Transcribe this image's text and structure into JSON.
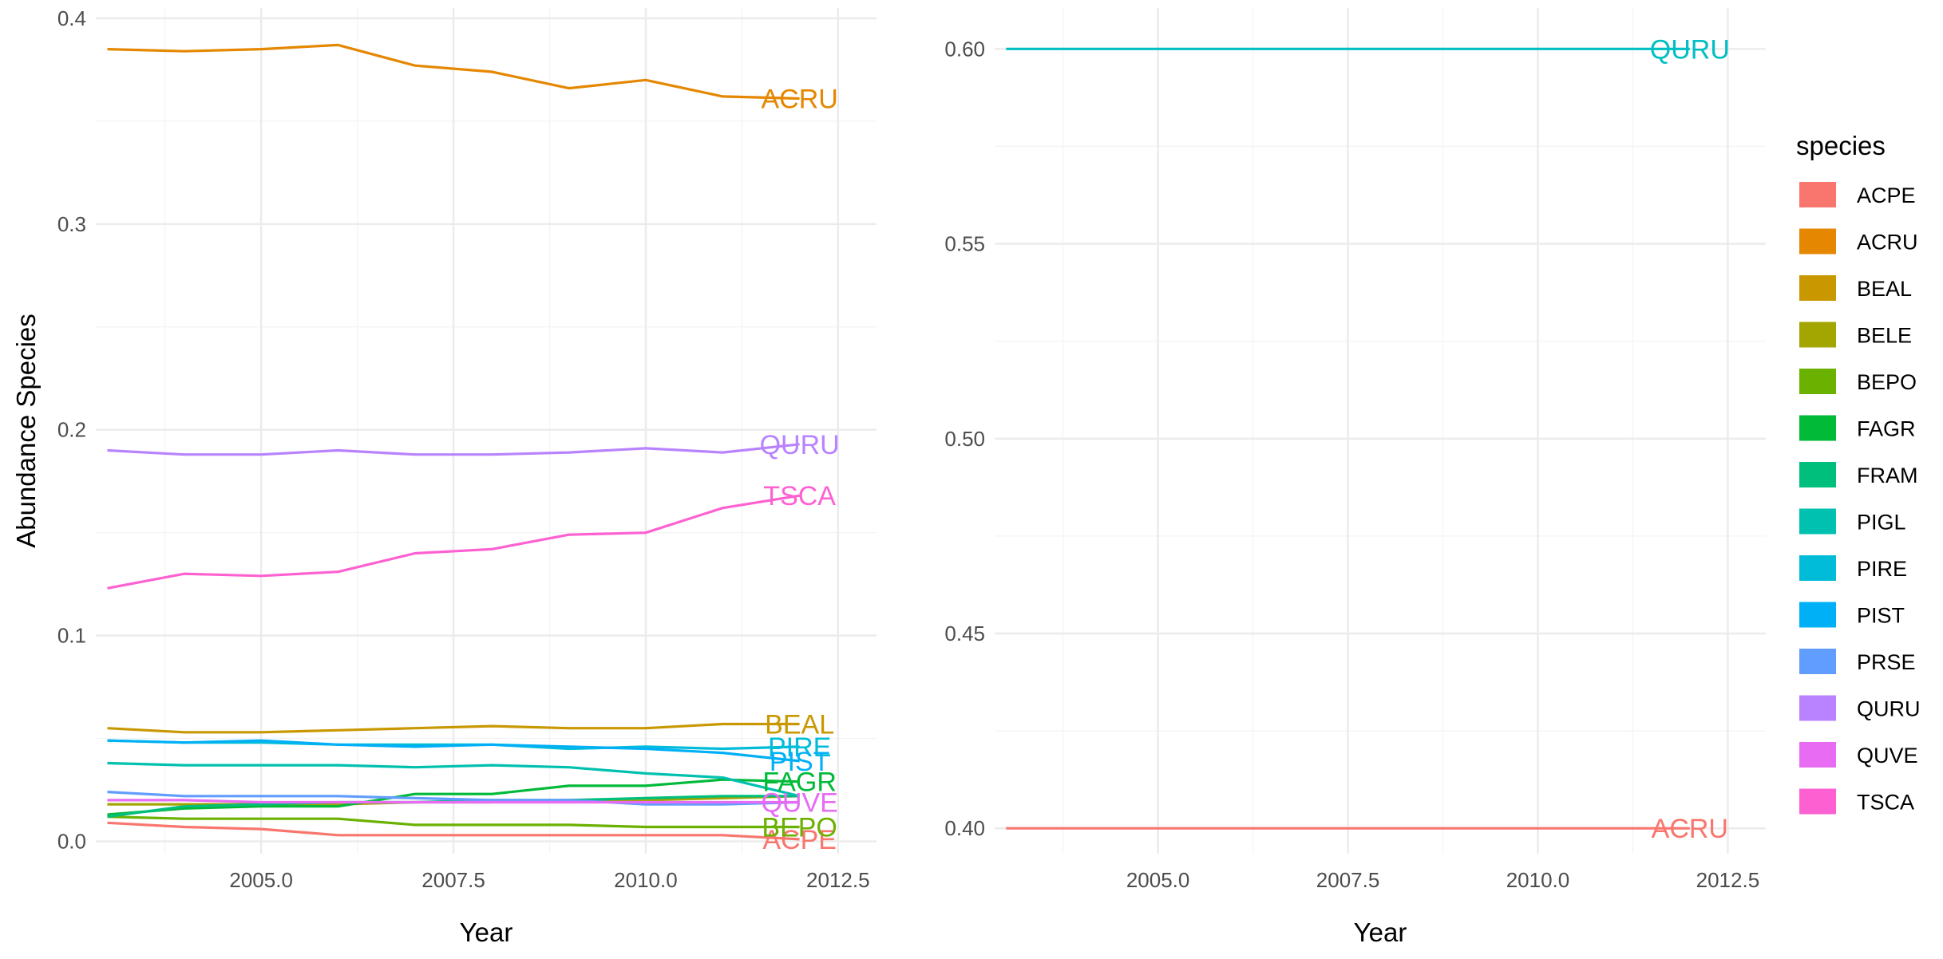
{
  "chart_data": [
    {
      "type": "line",
      "title": "",
      "xlabel": "Year",
      "ylabel": "Abundance Species",
      "xlim": [
        2002.85,
        2013.0
      ],
      "ylim": [
        -0.006,
        0.405
      ],
      "x_ticks": [
        2005.0,
        2007.5,
        2010.0,
        2012.5
      ],
      "x_tick_labels": [
        "2005.0",
        "2007.5",
        "2010.0",
        "2012.5"
      ],
      "y_ticks": [
        0.0,
        0.1,
        0.2,
        0.3,
        0.4
      ],
      "y_tick_labels": [
        "0.0",
        "0.1",
        "0.2",
        "0.3",
        "0.4"
      ],
      "grid": true,
      "x": [
        2003,
        2004,
        2005,
        2006,
        2007,
        2008,
        2009,
        2010,
        2011,
        2012
      ],
      "series": [
        {
          "name": "ACPE",
          "color": "#F8766D",
          "values": [
            0.009,
            0.007,
            0.006,
            0.003,
            0.003,
            0.003,
            0.003,
            0.003,
            0.003,
            0.001
          ],
          "label": "ACPE"
        },
        {
          "name": "ACRU",
          "color": "#E58700",
          "values": [
            0.385,
            0.384,
            0.385,
            0.387,
            0.377,
            0.374,
            0.366,
            0.37,
            0.362,
            0.361
          ],
          "label": "ACRU"
        },
        {
          "name": "BEAL",
          "color": "#C99800",
          "values": [
            0.055,
            0.053,
            0.053,
            0.054,
            0.055,
            0.056,
            0.055,
            0.055,
            0.057,
            0.057
          ],
          "label": "BEAL"
        },
        {
          "name": "BELE",
          "color": "#A3A500",
          "values": [
            0.018,
            0.018,
            0.018,
            0.018,
            0.019,
            0.019,
            0.02,
            0.02,
            0.021,
            0.022
          ],
          "label": ""
        },
        {
          "name": "BEPO",
          "color": "#6BB100",
          "values": [
            0.012,
            0.011,
            0.011,
            0.011,
            0.008,
            0.008,
            0.008,
            0.007,
            0.007,
            0.007
          ],
          "label": "BEPO"
        },
        {
          "name": "FAGR",
          "color": "#00BA38",
          "values": [
            0.013,
            0.016,
            0.017,
            0.017,
            0.023,
            0.023,
            0.027,
            0.027,
            0.03,
            0.029
          ],
          "label": "FAGR"
        },
        {
          "name": "FRAM",
          "color": "#00BF7D",
          "values": [
            0.012,
            0.017,
            0.018,
            0.019,
            0.019,
            0.02,
            0.02,
            0.021,
            0.022,
            0.022
          ],
          "label": ""
        },
        {
          "name": "PIGL",
          "color": "#00C0AF",
          "values": [
            0.038,
            0.037,
            0.037,
            0.037,
            0.036,
            0.037,
            0.036,
            0.033,
            0.031,
            0.022
          ],
          "label": ""
        },
        {
          "name": "PIRE",
          "color": "#00BCD8",
          "values": [
            0.049,
            0.048,
            0.048,
            0.047,
            0.047,
            0.047,
            0.045,
            0.046,
            0.045,
            0.046
          ],
          "label": "PIRE"
        },
        {
          "name": "PIST",
          "color": "#00B0F6",
          "values": [
            0.049,
            0.048,
            0.049,
            0.047,
            0.046,
            0.047,
            0.046,
            0.045,
            0.043,
            0.039
          ],
          "label": "PIST"
        },
        {
          "name": "PRSE",
          "color": "#619CFF",
          "values": [
            0.024,
            0.022,
            0.022,
            0.022,
            0.021,
            0.02,
            0.02,
            0.018,
            0.018,
            0.019
          ],
          "label": ""
        },
        {
          "name": "QURU",
          "color": "#B983FF",
          "values": [
            0.19,
            0.188,
            0.188,
            0.19,
            0.188,
            0.188,
            0.189,
            0.191,
            0.189,
            0.193
          ],
          "label": "QURU"
        },
        {
          "name": "QUVE",
          "color": "#E76BF3",
          "values": [
            0.02,
            0.02,
            0.019,
            0.019,
            0.019,
            0.019,
            0.019,
            0.019,
            0.019,
            0.019
          ],
          "label": "QUVE"
        },
        {
          "name": "TSCA",
          "color": "#FD61D1",
          "values": [
            0.123,
            0.13,
            0.129,
            0.131,
            0.14,
            0.142,
            0.149,
            0.15,
            0.162,
            0.168
          ],
          "label": "TSCA"
        }
      ]
    },
    {
      "type": "line",
      "title": "",
      "xlabel": "Year",
      "ylabel": "",
      "xlim": [
        2002.85,
        2013.0
      ],
      "ylim": [
        0.3935,
        0.6105
      ],
      "x_ticks": [
        2005.0,
        2007.5,
        2010.0,
        2012.5
      ],
      "x_tick_labels": [
        "2005.0",
        "2007.5",
        "2010.0",
        "2012.5"
      ],
      "y_ticks": [
        0.4,
        0.45,
        0.5,
        0.55,
        0.6
      ],
      "y_tick_labels": [
        "0.40",
        "0.45",
        "0.50",
        "0.55",
        "0.60"
      ],
      "grid": true,
      "x": [
        2003,
        2004,
        2005,
        2006,
        2007,
        2008,
        2009,
        2010,
        2011,
        2012
      ],
      "series": [
        {
          "name": "ACRU",
          "color": "#F8766D",
          "values": [
            0.4,
            0.4,
            0.4,
            0.4,
            0.4,
            0.4,
            0.4,
            0.4,
            0.4,
            0.4
          ],
          "label": "ACRU"
        },
        {
          "name": "QURU",
          "color": "#00BFC4",
          "values": [
            0.6,
            0.6,
            0.6,
            0.6,
            0.6,
            0.6,
            0.6,
            0.6,
            0.6,
            0.6
          ],
          "label": "QURU"
        }
      ]
    }
  ],
  "legend": {
    "title": "species",
    "position": "right",
    "items": [
      {
        "label": "ACPE",
        "color": "#F8766D"
      },
      {
        "label": "ACRU",
        "color": "#E58700"
      },
      {
        "label": "BEAL",
        "color": "#C99800"
      },
      {
        "label": "BELE",
        "color": "#A3A500"
      },
      {
        "label": "BEPO",
        "color": "#6BB100"
      },
      {
        "label": "FAGR",
        "color": "#00BA38"
      },
      {
        "label": "FRAM",
        "color": "#00BF7D"
      },
      {
        "label": "PIGL",
        "color": "#00C0AF"
      },
      {
        "label": "PIRE",
        "color": "#00BCD8"
      },
      {
        "label": "PIST",
        "color": "#00B0F6"
      },
      {
        "label": "PRSE",
        "color": "#619CFF"
      },
      {
        "label": "QURU",
        "color": "#B983FF"
      },
      {
        "label": "QUVE",
        "color": "#E76BF3"
      },
      {
        "label": "TSCA",
        "color": "#FD61D1"
      }
    ]
  }
}
